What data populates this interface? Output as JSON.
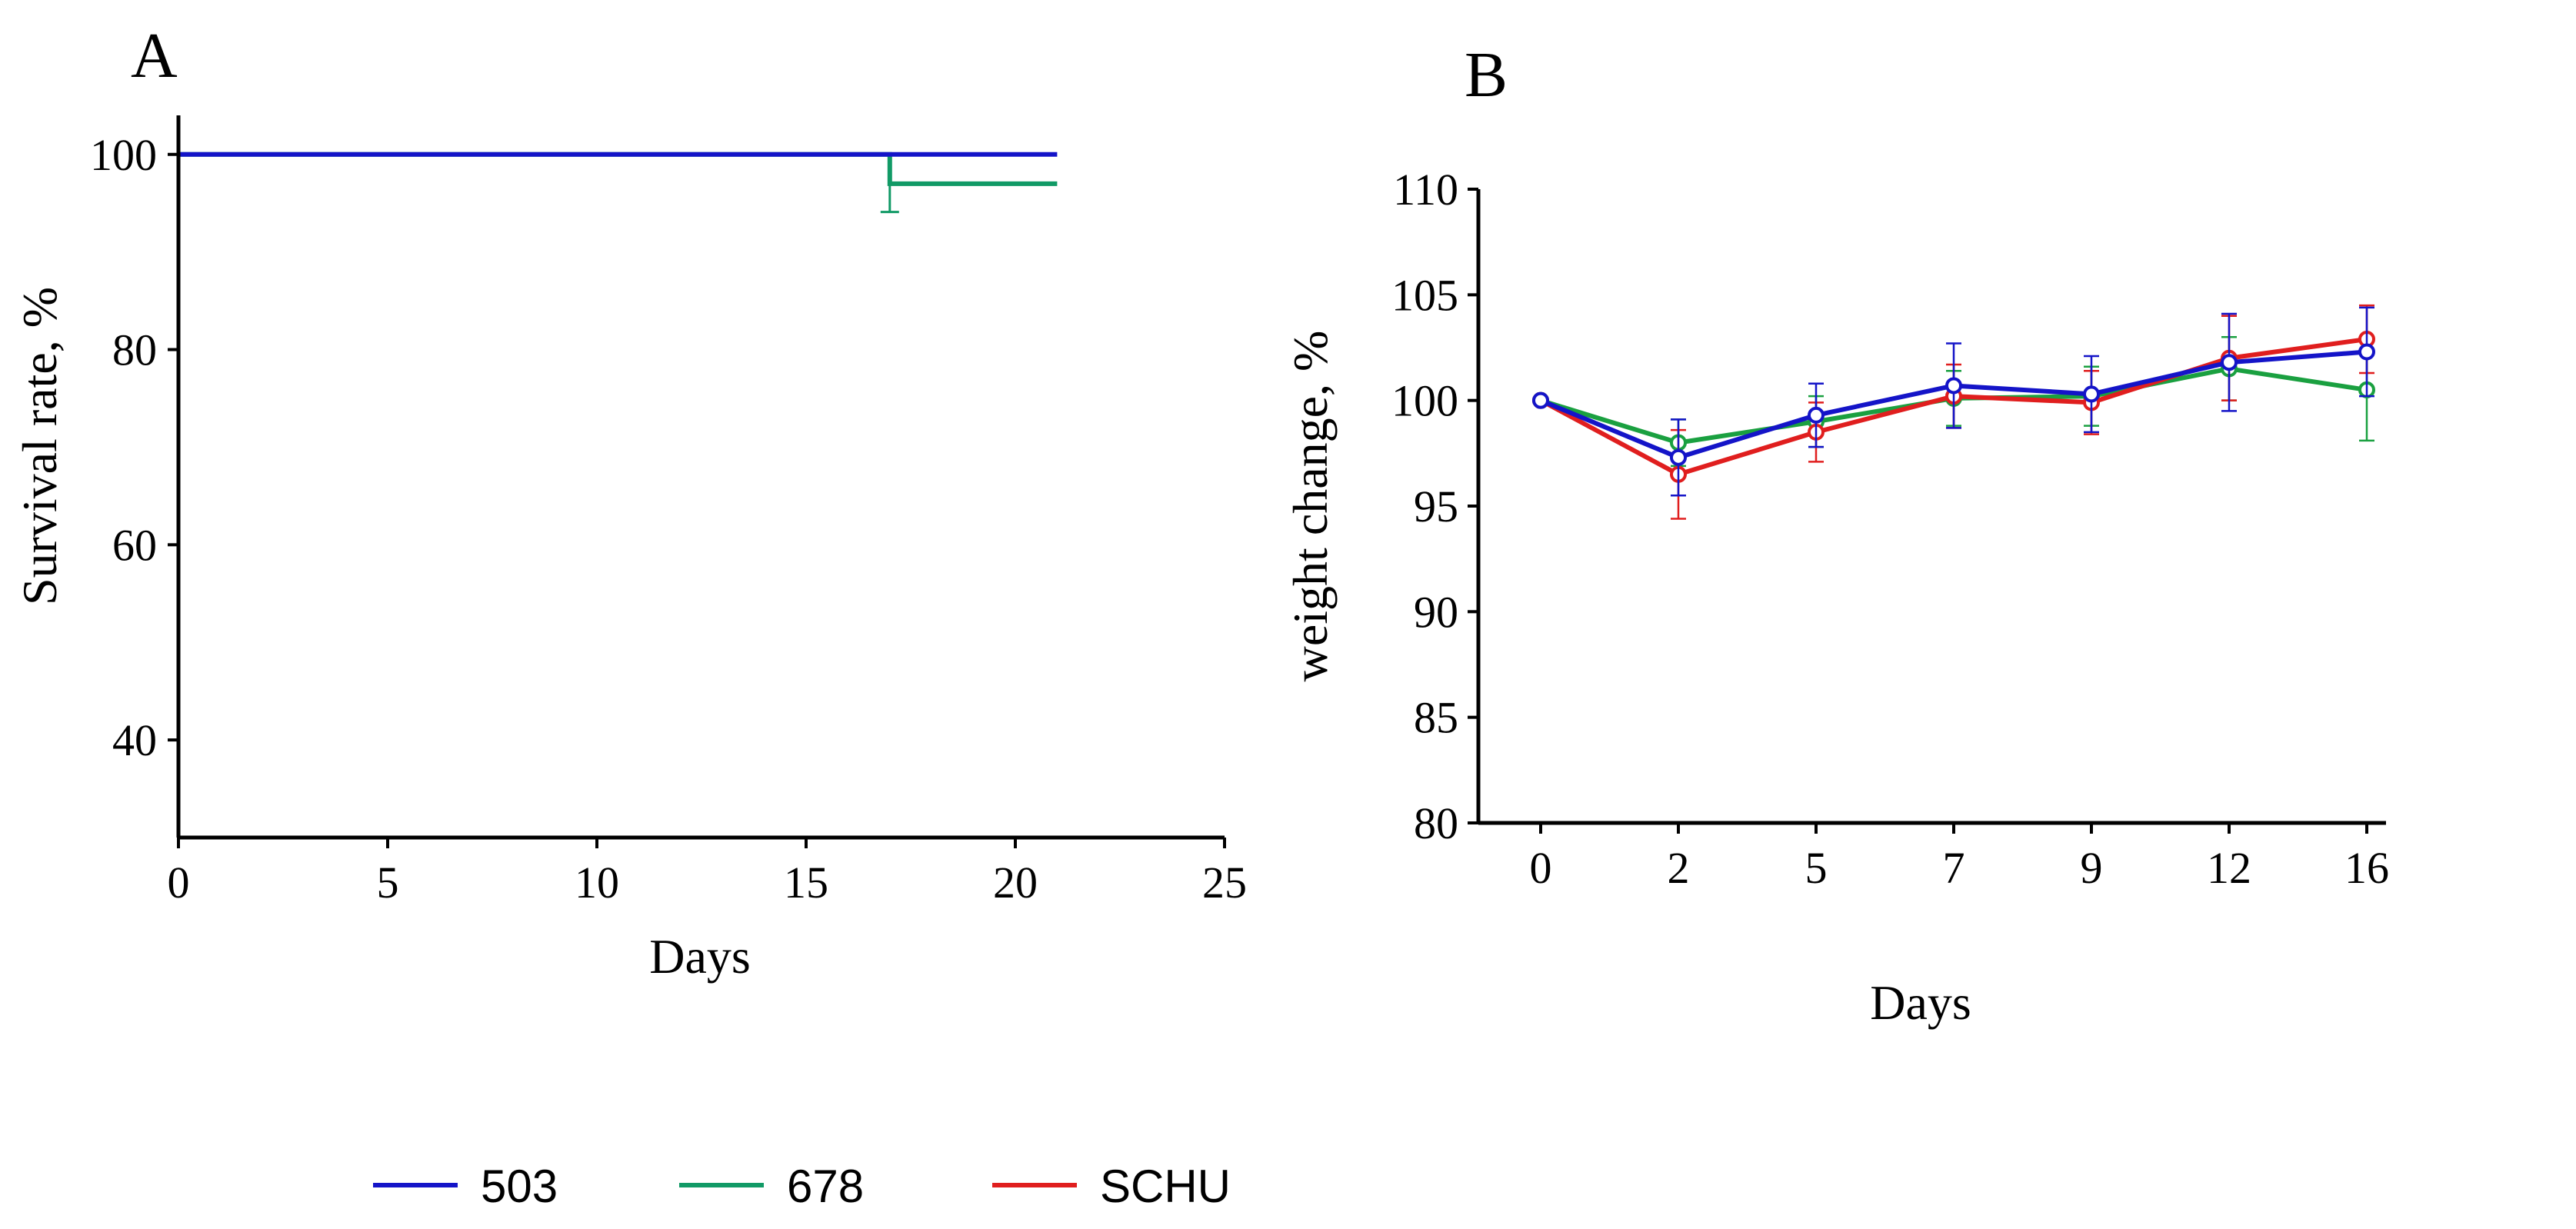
{
  "chart_data": [
    {
      "type": "line",
      "panel_label": "A",
      "title": "",
      "xlabel": "Days",
      "ylabel": "Survival rate, %",
      "xlim": [
        0,
        25
      ],
      "ylim": [
        30,
        104
      ],
      "xticks": [
        0,
        5,
        10,
        15,
        20,
        25
      ],
      "yticks": [
        40,
        60,
        80,
        100
      ],
      "grid": false,
      "series": [
        {
          "name": "678",
          "color": "#119a66",
          "x": [
            0,
            17,
            17,
            21
          ],
          "y": [
            100,
            100,
            97,
            97
          ],
          "error_at": {
            "x": 17,
            "y": 97,
            "err": 2.9
          }
        },
        {
          "name": "503",
          "color": "#1414c8",
          "x": [
            0,
            21
          ],
          "y": [
            100,
            100
          ]
        }
      ]
    },
    {
      "type": "line",
      "panel_label": "B",
      "title": "",
      "xlabel": "Days",
      "ylabel": "weight change, %",
      "categories": [
        "0",
        "2",
        "5",
        "7",
        "9",
        "12",
        "16"
      ],
      "ylim": [
        80,
        110
      ],
      "yticks": [
        80,
        85,
        90,
        95,
        100,
        105,
        110
      ],
      "grid": false,
      "series": [
        {
          "name": "678",
          "color": "#1aa040",
          "values": [
            100,
            98.0,
            99.0,
            100.1,
            100.2,
            101.5,
            100.5
          ],
          "errors": [
            0,
            1.1,
            1.2,
            1.3,
            1.4,
            1.5,
            2.4
          ]
        },
        {
          "name": "SCHU",
          "color": "#e01e1e",
          "values": [
            100,
            96.5,
            98.5,
            100.2,
            99.9,
            102.0,
            102.9
          ],
          "errors": [
            0,
            2.1,
            1.4,
            1.5,
            1.5,
            2.0,
            1.6
          ]
        },
        {
          "name": "503",
          "color": "#1414c8",
          "values": [
            100,
            97.3,
            99.3,
            100.7,
            100.3,
            101.8,
            102.3
          ],
          "errors": [
            0,
            1.8,
            1.5,
            2.0,
            1.8,
            2.3,
            2.1
          ]
        }
      ]
    }
  ],
  "legend": {
    "placement": "bottom-center",
    "items": [
      {
        "label": "503",
        "color": "#1414c8"
      },
      {
        "label": "678",
        "color": "#119a66"
      },
      {
        "label": "SCHU",
        "color": "#e01e1e"
      }
    ]
  }
}
